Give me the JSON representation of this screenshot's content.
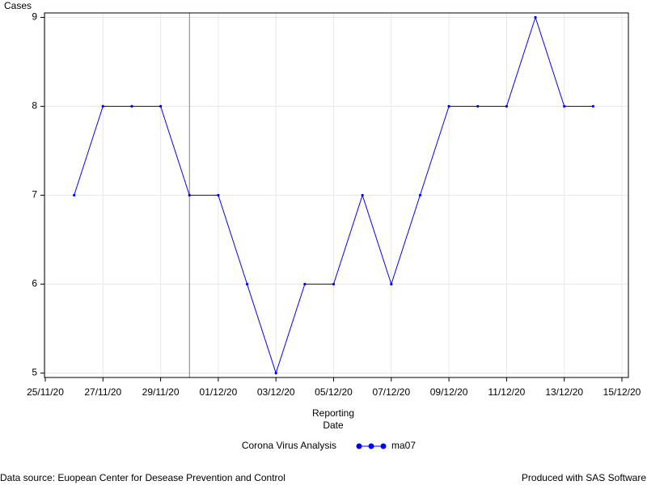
{
  "chart_data": {
    "type": "line",
    "ylabel": "Cases",
    "xlabel": "Reporting Date",
    "x": [
      "26/11/20",
      "27/11/20",
      "28/11/20",
      "29/11/20",
      "30/11/20",
      "01/12/20",
      "02/12/20",
      "03/12/20",
      "04/12/20",
      "05/12/20",
      "06/12/20",
      "07/12/20",
      "08/12/20",
      "09/12/20",
      "10/12/20",
      "11/12/20",
      "12/12/20",
      "13/12/20",
      "14/12/20"
    ],
    "series": [
      {
        "name": "ma07",
        "color": "#0000ff",
        "values": [
          7,
          8,
          8,
          8,
          7,
          7,
          6,
          5,
          6,
          6,
          7,
          6,
          7,
          8,
          8,
          8,
          9,
          8,
          8
        ]
      }
    ],
    "legend_title": "Corona Virus Analysis",
    "xlim": [
      "25/11/20",
      "15/12/20"
    ],
    "xticks": [
      "25/11/20",
      "27/11/20",
      "29/11/20",
      "01/12/20",
      "03/12/20",
      "05/12/20",
      "07/12/20",
      "09/12/20",
      "11/12/20",
      "13/12/20",
      "15/12/20"
    ],
    "ylim": [
      4.95,
      9.05
    ],
    "yticks": [
      5,
      6,
      7,
      8,
      9
    ],
    "reference_lines_x": [
      "30/11/20"
    ],
    "grid": true,
    "footnote_left": "Data source: Euopean Center for Desease Prevention and Control",
    "footnote_right": "Produced with SAS Software"
  }
}
